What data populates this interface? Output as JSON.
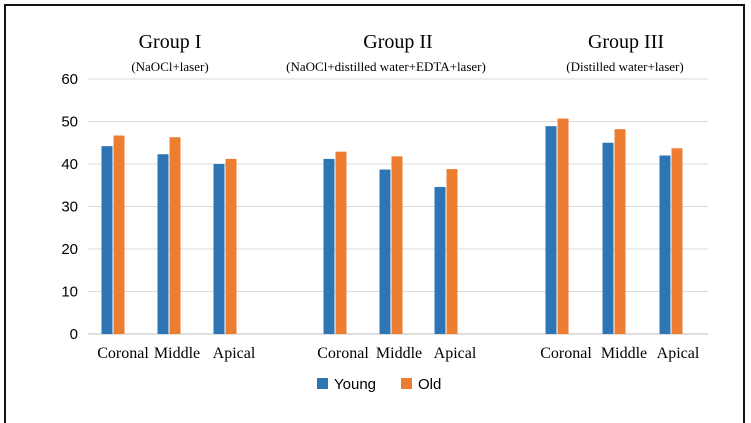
{
  "chart_data": {
    "type": "bar",
    "title": "",
    "xlabel": "",
    "ylabel": "",
    "ylim": [
      0,
      60
    ],
    "yticks": [
      0,
      10,
      20,
      30,
      40,
      50,
      60
    ],
    "grid": true,
    "legend_position": "bottom",
    "groups": [
      {
        "title": "Group I",
        "subtitle": "(NaOCl+laser)",
        "categories": [
          "Coronal",
          "Middle",
          "Apical"
        ],
        "series": [
          {
            "name": "Young",
            "values": [
              44.2,
              42.3,
              40.0
            ]
          },
          {
            "name": "Old",
            "values": [
              46.7,
              46.3,
              41.2
            ]
          }
        ]
      },
      {
        "title": "Group II",
        "subtitle": "(NaOCl+distilled water+EDTA+laser)",
        "categories": [
          "Coronal",
          "Middle",
          "Apical"
        ],
        "series": [
          {
            "name": "Young",
            "values": [
              41.2,
              38.7,
              34.6
            ]
          },
          {
            "name": "Old",
            "values": [
              42.9,
              41.8,
              38.8
            ]
          }
        ]
      },
      {
        "title": "Group III",
        "subtitle": "(Distilled water+laser)",
        "categories": [
          "Coronal",
          "Middle",
          "Apical"
        ],
        "series": [
          {
            "name": "Young",
            "values": [
              48.9,
              45.0,
              42.0
            ]
          },
          {
            "name": "Old",
            "values": [
              50.7,
              48.2,
              43.7
            ]
          }
        ]
      }
    ],
    "legend": [
      {
        "name": "Young",
        "color": "#2E75B6"
      },
      {
        "name": "Old",
        "color": "#ED7D31"
      }
    ]
  }
}
